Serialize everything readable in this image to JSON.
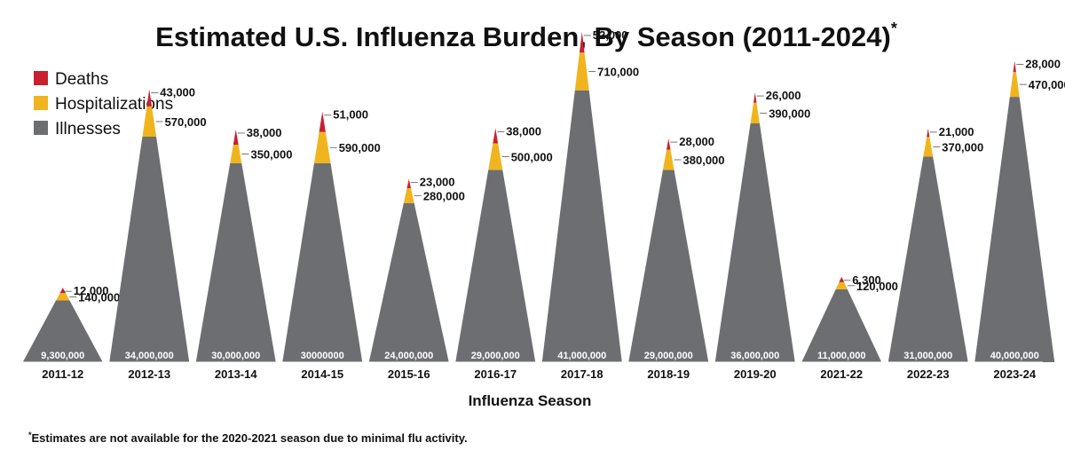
{
  "chart_data": {
    "type": "area",
    "title": "Estimated U.S. Influenza Burden, By Season (2011-2024)",
    "title_marker": "*",
    "xlabel": "Influenza Season",
    "ylabel": "",
    "footnote_marker": "*",
    "footnote": "Estimates are not available for the 2020-2021 season due to minimal flu activity.",
    "legend_position": "top-left",
    "legend": [
      {
        "key": "deaths",
        "label": "Deaths",
        "color": "#c8202f"
      },
      {
        "key": "hospitalizations",
        "label": "Hospitalizations",
        "color": "#f0b51e"
      },
      {
        "key": "illnesses",
        "label": "Illnesses",
        "color": "#6d6e71"
      }
    ],
    "categories": [
      "2011-12",
      "2012-13",
      "2013-14",
      "2014-15",
      "2015-16",
      "2016-17",
      "2017-18",
      "2018-19",
      "2019-20",
      "2021-22",
      "2022-23",
      "2023-24"
    ],
    "series": [
      {
        "name": "Illnesses",
        "values": [
          9300000,
          34000000,
          30000000,
          30000000,
          24000000,
          29000000,
          41000000,
          29000000,
          36000000,
          11000000,
          31000000,
          40000000
        ]
      },
      {
        "name": "Hospitalizations",
        "values": [
          140000,
          570000,
          350000,
          590000,
          280000,
          500000,
          710000,
          380000,
          390000,
          120000,
          370000,
          470000
        ]
      },
      {
        "name": "Deaths",
        "values": [
          12000,
          43000,
          38000,
          51000,
          23000,
          38000,
          52000,
          28000,
          26000,
          6300,
          21000,
          28000
        ]
      }
    ],
    "labels": {
      "illnesses": [
        "9,300,000",
        "34,000,000",
        "30,000,000",
        "30000000",
        "24,000,000",
        "29,000,000",
        "41,000,000",
        "29,000,000",
        "36,000,000",
        "11,000,000",
        "31,000,000",
        "40,000,000"
      ],
      "hospitalizations": [
        "140,000",
        "570,000",
        "350,000",
        "590,000",
        "280,000",
        "500,000",
        "710,000",
        "380,000",
        "390,000",
        "120,000",
        "370,000",
        "470,000"
      ],
      "deaths": [
        "12,000",
        "43,000",
        "38,000",
        "51,000",
        "23,000",
        "38,000",
        "52,000",
        "28,000",
        "26,000",
        "6,300",
        "21,000",
        "28,000"
      ]
    }
  }
}
